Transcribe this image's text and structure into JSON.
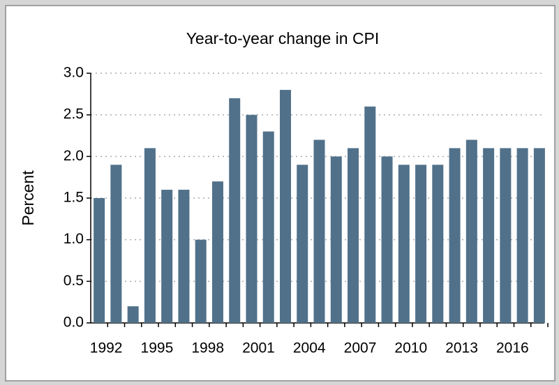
{
  "chart_data": {
    "type": "bar",
    "title": "Year-to-year change in CPI",
    "y_label": "Percent",
    "categories": [
      "1992",
      null,
      null,
      "1995",
      null,
      null,
      "1998",
      null,
      null,
      "2001",
      null,
      null,
      "2004",
      null,
      null,
      "2007",
      null,
      null,
      "2010",
      null,
      null,
      "2013",
      null,
      null,
      "2016",
      null,
      null
    ],
    "values": [
      1.5,
      1.9,
      0.2,
      2.1,
      1.6,
      1.6,
      1.0,
      1.7,
      2.7,
      2.5,
      2.3,
      2.8,
      1.9,
      2.2,
      2.0,
      2.1,
      2.6,
      2.0,
      1.9,
      1.9,
      1.9,
      2.1,
      2.2,
      2.1,
      2.1,
      2.1,
      2.1
    ],
    "color": "#51718a",
    "ylim": [
      0,
      3
    ],
    "yticks": [
      {
        "value": 0,
        "label": "0.0"
      },
      0.5,
      {
        "value": 1,
        "label": "1.0"
      },
      1.5,
      {
        "value": 2,
        "label": "2.0"
      },
      2.5,
      {
        "value": 3,
        "label": "3.0"
      }
    ],
    "grid": true
  }
}
